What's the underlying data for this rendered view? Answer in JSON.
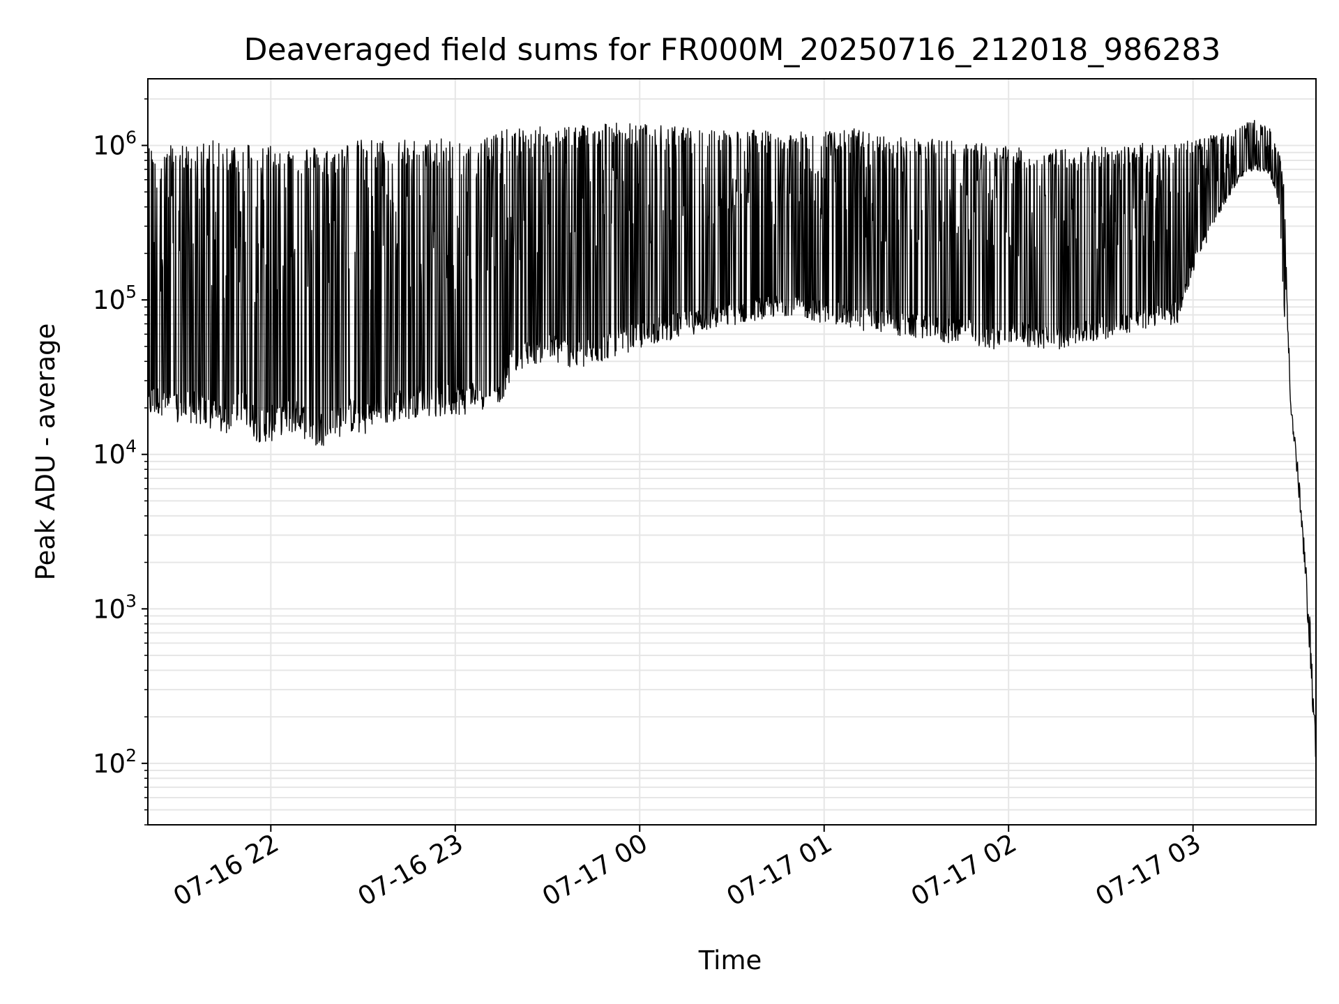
{
  "chart_data": {
    "type": "line",
    "title": "Deaveraged field sums for FR000M_20250716_212018_986283",
    "xlabel": "Time",
    "ylabel": "Peak ADU - average",
    "yscale": "log",
    "xlim": [
      "2025-07-16 21:20",
      "2025-07-17 03:40"
    ],
    "ylim": [
      40,
      2700000
    ],
    "grid": true,
    "line_color": "#000000",
    "grid_color": "#e6e6e6",
    "x_ticks": [
      {
        "value": "2025-07-16 22:00",
        "label": "07-16 22"
      },
      {
        "value": "2025-07-16 23:00",
        "label": "07-16 23"
      },
      {
        "value": "2025-07-17 00:00",
        "label": "07-17 00"
      },
      {
        "value": "2025-07-17 01:00",
        "label": "07-17 01"
      },
      {
        "value": "2025-07-17 02:00",
        "label": "07-17 02"
      },
      {
        "value": "2025-07-17 03:00",
        "label": "07-17 03"
      }
    ],
    "y_ticks": [
      {
        "value": 100,
        "base": "10",
        "exp": "2"
      },
      {
        "value": 1000,
        "base": "10",
        "exp": "3"
      },
      {
        "value": 10000,
        "base": "10",
        "exp": "4"
      },
      {
        "value": 100000,
        "base": "10",
        "exp": "5"
      },
      {
        "value": 1000000,
        "base": "10",
        "exp": "6"
      }
    ],
    "series": [
      {
        "x": [
          "2025-07-16 21:20",
          "2025-07-16 21:25",
          "2025-07-16 21:30",
          "2025-07-16 21:35",
          "2025-07-16 21:40",
          "2025-07-16 21:45",
          "2025-07-16 21:50",
          "2025-07-16 21:55",
          "2025-07-16 22:00",
          "2025-07-16 22:05",
          "2025-07-16 22:10",
          "2025-07-16 22:15",
          "2025-07-16 22:20",
          "2025-07-16 22:25",
          "2025-07-16 22:30",
          "2025-07-16 22:35",
          "2025-07-16 22:40",
          "2025-07-16 22:45",
          "2025-07-16 22:50",
          "2025-07-16 22:55",
          "2025-07-16 23:00",
          "2025-07-16 23:05",
          "2025-07-16 23:10",
          "2025-07-16 23:15",
          "2025-07-16 23:20",
          "2025-07-16 23:25",
          "2025-07-16 23:30",
          "2025-07-16 23:35",
          "2025-07-16 23:40",
          "2025-07-16 23:45",
          "2025-07-16 23:50",
          "2025-07-16 23:55",
          "2025-07-17 00:00",
          "2025-07-17 00:05",
          "2025-07-17 00:10",
          "2025-07-17 00:15",
          "2025-07-17 00:20",
          "2025-07-17 00:25",
          "2025-07-17 00:30",
          "2025-07-17 00:35",
          "2025-07-17 00:40",
          "2025-07-17 00:45",
          "2025-07-17 00:50",
          "2025-07-17 00:55",
          "2025-07-17 01:00",
          "2025-07-17 01:05",
          "2025-07-17 01:10",
          "2025-07-17 01:15",
          "2025-07-17 01:20",
          "2025-07-17 01:25",
          "2025-07-17 01:30",
          "2025-07-17 01:35",
          "2025-07-17 01:40",
          "2025-07-17 01:45",
          "2025-07-17 01:50",
          "2025-07-17 01:55",
          "2025-07-17 02:00",
          "2025-07-17 02:05",
          "2025-07-17 02:10",
          "2025-07-17 02:15",
          "2025-07-17 02:20",
          "2025-07-17 02:25",
          "2025-07-17 02:30",
          "2025-07-17 02:35",
          "2025-07-17 02:40",
          "2025-07-17 02:45",
          "2025-07-17 02:50",
          "2025-07-17 02:55",
          "2025-07-17 03:00",
          "2025-07-17 03:05",
          "2025-07-17 03:10",
          "2025-07-17 03:15",
          "2025-07-17 03:20",
          "2025-07-17 03:25",
          "2025-07-17 03:28",
          "2025-07-17 03:30",
          "2025-07-17 03:32",
          "2025-07-17 03:34",
          "2025-07-17 03:36",
          "2025-07-17 03:38",
          "2025-07-17 03:40"
        ],
        "lower": [
          17000,
          18000,
          15000,
          16000,
          14000,
          13000,
          17000,
          12000,
          12000,
          14000,
          13000,
          11000,
          12000,
          14000,
          13000,
          15000,
          16000,
          17000,
          18000,
          17000,
          18000,
          18000,
          20000,
          22000,
          35000,
          38000,
          40000,
          38000,
          35000,
          37000,
          42000,
          45000,
          48000,
          52000,
          55000,
          58000,
          62000,
          65000,
          68000,
          72000,
          75000,
          78000,
          80000,
          75000,
          70000,
          68000,
          65000,
          62000,
          60000,
          58000,
          56000,
          55000,
          52000,
          55000,
          50000,
          48000,
          52000,
          50000,
          48000,
          47000,
          50000,
          52000,
          55000,
          58000,
          62000,
          65000,
          68000,
          70000,
          150000,
          250000,
          400000,
          600000,
          700000,
          650000,
          400000,
          60000,
          12000,
          5000,
          1500,
          300,
          60
        ],
        "upper": [
          1000000,
          1000000,
          1050000,
          1000000,
          1100000,
          1000000,
          1100000,
          1050000,
          1050000,
          1000000,
          1000000,
          1000000,
          1000000,
          1050000,
          1100000,
          1100000,
          1100000,
          1100000,
          1100000,
          1100000,
          1150000,
          1200000,
          1200000,
          1250000,
          1300000,
          1300000,
          1350000,
          1350000,
          1400000,
          1400000,
          1450000,
          1400000,
          1400000,
          1350000,
          1350000,
          1300000,
          1300000,
          1300000,
          1250000,
          1300000,
          1250000,
          1200000,
          1250000,
          1200000,
          1250000,
          1250000,
          1300000,
          1200000,
          1150000,
          1150000,
          1100000,
          1100000,
          1100000,
          1050000,
          1050000,
          1000000,
          1000000,
          950000,
          950000,
          950000,
          950000,
          1000000,
          1000000,
          1000000,
          1000000,
          1050000,
          1050000,
          1100000,
          1100000,
          1150000,
          1200000,
          1300000,
          1500000,
          1300000,
          900000,
          500000,
          30000,
          12000,
          4000,
          1500,
          200
        ]
      }
    ]
  }
}
